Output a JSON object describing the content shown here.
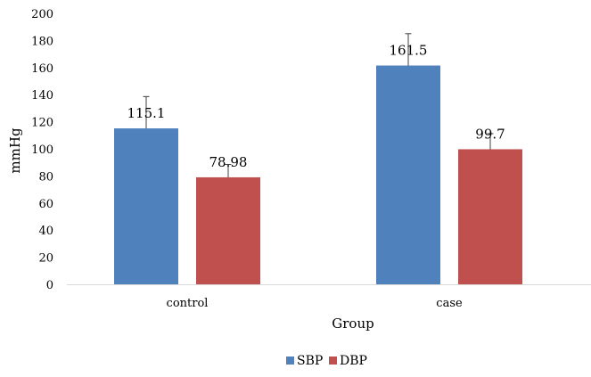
{
  "chart_data": {
    "type": "bar",
    "title": "",
    "xlabel": "Group",
    "ylabel": "mmHg",
    "categories": [
      "control",
      "case"
    ],
    "series": [
      {
        "name": "SBP",
        "color": "#4f81bd",
        "values": [
          115.1,
          161.5
        ],
        "error": [
          23.5,
          23.5
        ],
        "labels": [
          "115.1",
          "161.5"
        ]
      },
      {
        "name": "DBP",
        "color": "#c0504d",
        "values": [
          78.98,
          99.7
        ],
        "error": [
          9.5,
          11.5
        ],
        "labels": [
          "78.98",
          "99.7"
        ]
      }
    ],
    "ylim": [
      0,
      200
    ],
    "yticks": [
      0,
      20,
      40,
      60,
      80,
      100,
      120,
      140,
      160,
      180,
      200
    ],
    "grid": false,
    "legend_position": "bottom"
  }
}
